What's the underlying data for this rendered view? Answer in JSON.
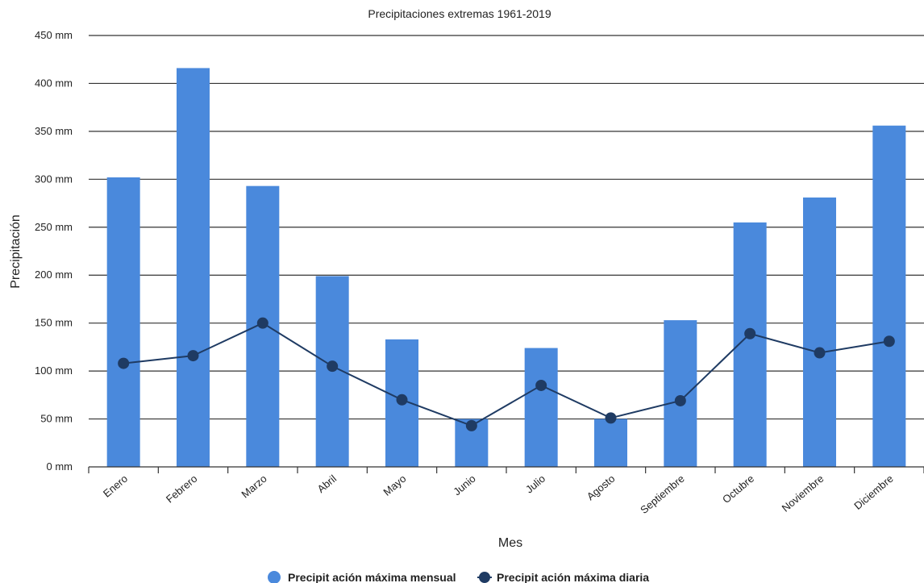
{
  "chart_data": {
    "type": "bar",
    "title": "Precipitaciones extremas 1961-2019",
    "xlabel": "Mes",
    "ylabel": "Precipitación",
    "y_unit": "mm",
    "ylim": [
      0,
      450
    ],
    "y_ticks": [
      "0 mm",
      "50 mm",
      "100 mm",
      "150 mm",
      "200 mm",
      "250 mm",
      "300 mm",
      "350 mm",
      "400 mm",
      "450 mm"
    ],
    "categories": [
      "Enero",
      "Febrero",
      "Marzo",
      "Abril",
      "Mayo",
      "Junio",
      "Julio",
      "Agosto",
      "Septiembre",
      "Octubre",
      "Noviembre",
      "Diciembre"
    ],
    "series": [
      {
        "name": "Precipit ación máxima mensual",
        "kind": "bar",
        "color": "#4a89dc",
        "values": [
          302,
          416,
          293,
          199,
          133,
          50,
          124,
          50,
          153,
          255,
          281,
          356
        ]
      },
      {
        "name": "Precipit ación máxima diaria",
        "kind": "line",
        "color": "#1f3b63",
        "values": [
          108,
          116,
          150,
          105,
          70,
          43,
          85,
          51,
          69,
          139,
          119,
          131
        ]
      }
    ],
    "grid": true,
    "legend": "bottom-center"
  }
}
